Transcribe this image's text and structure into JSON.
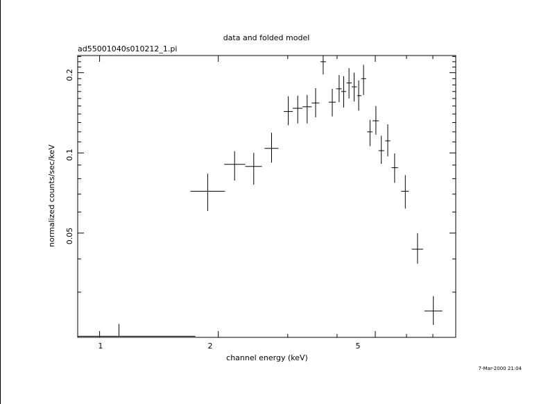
{
  "chart_data": {
    "type": "scatter",
    "title": "data and folded model",
    "subtitle": "ad55001040s010212_1.pi",
    "xlabel": "channel energy (keV)",
    "ylabel": "normalized counts/sec/keV",
    "x_scale": "log",
    "y_scale": "log",
    "xlim": [
      0.88,
      8.0
    ],
    "ylim": [
      0.0203,
      0.232
    ],
    "x_ticks": [
      "1",
      "2",
      "5"
    ],
    "y_ticks": [
      "0.05",
      "0.1",
      "0.2"
    ],
    "timestamp": "7-Mar-2000 21:04",
    "series": [
      {
        "points": [
          {
            "x": 1.12,
            "xlo": 0.88,
            "xhi": 1.75,
            "y": 0.0205,
            "ylo": 0.0205,
            "yhi": 0.0228
          },
          {
            "x": 1.88,
            "xlo": 1.7,
            "xhi": 2.08,
            "y": 0.0718,
            "ylo": 0.0605,
            "yhi": 0.0835
          },
          {
            "x": 2.2,
            "xlo": 2.07,
            "xhi": 2.34,
            "y": 0.0906,
            "ylo": 0.0788,
            "yhi": 0.1015
          },
          {
            "x": 2.46,
            "xlo": 2.34,
            "xhi": 2.58,
            "y": 0.089,
            "ylo": 0.076,
            "yhi": 0.1
          },
          {
            "x": 2.73,
            "xlo": 2.62,
            "xhi": 2.84,
            "y": 0.104,
            "ylo": 0.092,
            "yhi": 0.119
          },
          {
            "x": 3.01,
            "xlo": 2.93,
            "xhi": 3.09,
            "y": 0.143,
            "ylo": 0.127,
            "yhi": 0.163
          },
          {
            "x": 3.18,
            "xlo": 3.09,
            "xhi": 3.27,
            "y": 0.147,
            "ylo": 0.129,
            "yhi": 0.164
          },
          {
            "x": 3.36,
            "xlo": 3.27,
            "xhi": 3.45,
            "y": 0.149,
            "ylo": 0.129,
            "yhi": 0.165
          },
          {
            "x": 3.53,
            "xlo": 3.45,
            "xhi": 3.61,
            "y": 0.154,
            "ylo": 0.136,
            "yhi": 0.175
          },
          {
            "x": 3.69,
            "xlo": 3.63,
            "xhi": 3.75,
            "y": 0.22,
            "ylo": 0.197,
            "yhi": 0.232
          },
          {
            "x": 3.89,
            "xlo": 3.81,
            "xhi": 3.97,
            "y": 0.155,
            "ylo": 0.137,
            "yhi": 0.174
          },
          {
            "x": 4.05,
            "xlo": 3.98,
            "xhi": 4.11,
            "y": 0.174,
            "ylo": 0.155,
            "yhi": 0.196
          },
          {
            "x": 4.16,
            "xlo": 4.1,
            "xhi": 4.22,
            "y": 0.17,
            "ylo": 0.148,
            "yhi": 0.194
          },
          {
            "x": 4.29,
            "xlo": 4.23,
            "xhi": 4.36,
            "y": 0.183,
            "ylo": 0.16,
            "yhi": 0.208
          },
          {
            "x": 4.42,
            "xlo": 4.36,
            "xhi": 4.49,
            "y": 0.177,
            "ylo": 0.156,
            "yhi": 0.2
          },
          {
            "x": 4.54,
            "xlo": 4.5,
            "xhi": 4.61,
            "y": 0.164,
            "ylo": 0.144,
            "yhi": 0.187
          },
          {
            "x": 4.67,
            "xlo": 4.61,
            "xhi": 4.74,
            "y": 0.19,
            "ylo": 0.165,
            "yhi": 0.214
          },
          {
            "x": 4.85,
            "xlo": 4.77,
            "xhi": 4.92,
            "y": 0.12,
            "ylo": 0.106,
            "yhi": 0.133
          },
          {
            "x": 5.02,
            "xlo": 4.92,
            "xhi": 5.11,
            "y": 0.132,
            "ylo": 0.117,
            "yhi": 0.15
          },
          {
            "x": 5.18,
            "xlo": 5.1,
            "xhi": 5.27,
            "y": 0.102,
            "ylo": 0.091,
            "yhi": 0.116
          },
          {
            "x": 5.38,
            "xlo": 5.3,
            "xhi": 5.46,
            "y": 0.111,
            "ylo": 0.097,
            "yhi": 0.128
          },
          {
            "x": 5.6,
            "xlo": 5.5,
            "xhi": 5.71,
            "y": 0.088,
            "ylo": 0.0772,
            "yhi": 0.0995
          },
          {
            "x": 5.96,
            "xlo": 5.82,
            "xhi": 6.08,
            "y": 0.0718,
            "ylo": 0.0618,
            "yhi": 0.0825
          },
          {
            "x": 6.4,
            "xlo": 6.19,
            "xhi": 6.61,
            "y": 0.0435,
            "ylo": 0.0384,
            "yhi": 0.05
          },
          {
            "x": 7.02,
            "xlo": 6.66,
            "xhi": 7.4,
            "y": 0.0255,
            "ylo": 0.0226,
            "yhi": 0.029
          }
        ]
      }
    ]
  }
}
